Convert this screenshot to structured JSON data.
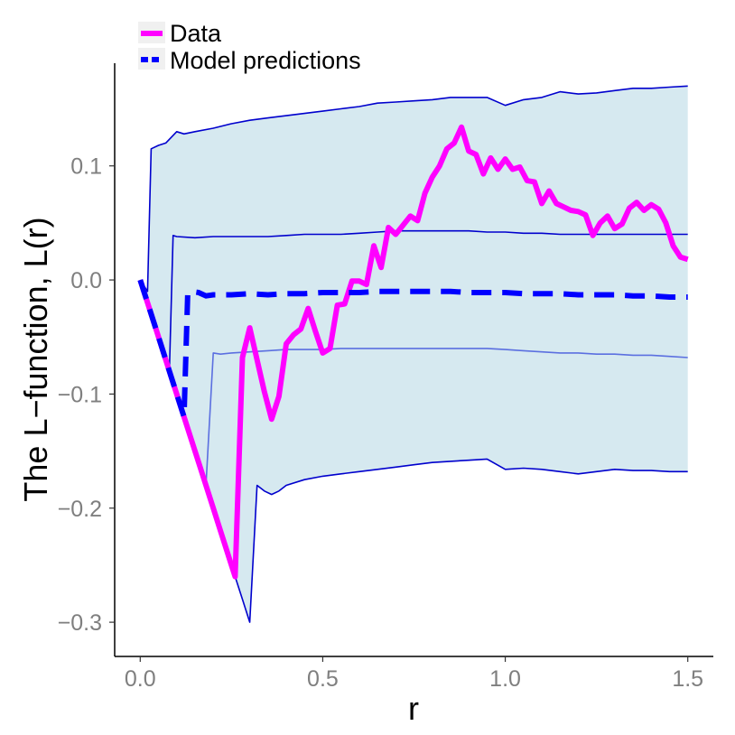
{
  "chart_data": {
    "type": "line",
    "title": "",
    "xlabel": "r",
    "ylabel": "The L−function, L(r)",
    "xlim": [
      -0.07,
      1.57
    ],
    "ylim": [
      -0.33,
      0.19
    ],
    "x_ticks": [
      0.0,
      0.5,
      1.0,
      1.5
    ],
    "x_tick_labels": [
      "0.0",
      "0.5",
      "1.0",
      "1.5"
    ],
    "y_ticks": [
      0.1,
      0.0,
      -0.1,
      -0.2,
      -0.3
    ],
    "y_tick_labels": [
      "0.1",
      "0.0",
      "−0.1",
      "−0.2",
      "−0.3"
    ],
    "grid": false,
    "legend": {
      "placement": "top-left",
      "entries": [
        {
          "label": "Data",
          "color": "#ff00ff",
          "style": "solid"
        },
        {
          "label": "Model predictions",
          "color": "#0000ff",
          "style": "dashed"
        }
      ]
    },
    "colors": {
      "data": "#ff00ff",
      "model": "#0000ff",
      "outer_band": "#0000cd",
      "inner_lower": "#5b6fe0",
      "band_fill": "#d6e9f0",
      "axis": "#000000"
    },
    "series": [
      {
        "name": "Data",
        "role": "data",
        "x": [
          0.0,
          0.02,
          0.04,
          0.06,
          0.08,
          0.1,
          0.12,
          0.14,
          0.16,
          0.18,
          0.2,
          0.22,
          0.24,
          0.26,
          0.28,
          0.3,
          0.32,
          0.34,
          0.36,
          0.38,
          0.4,
          0.42,
          0.44,
          0.46,
          0.48,
          0.5,
          0.52,
          0.54,
          0.56,
          0.58,
          0.6,
          0.62,
          0.64,
          0.66,
          0.68,
          0.7,
          0.72,
          0.74,
          0.76,
          0.78,
          0.8,
          0.82,
          0.84,
          0.86,
          0.88,
          0.9,
          0.92,
          0.94,
          0.96,
          0.98,
          1.0,
          1.02,
          1.04,
          1.06,
          1.08,
          1.1,
          1.12,
          1.14,
          1.16,
          1.18,
          1.2,
          1.22,
          1.24,
          1.26,
          1.28,
          1.3,
          1.32,
          1.34,
          1.36,
          1.38,
          1.4,
          1.42,
          1.44,
          1.46,
          1.48,
          1.5
        ],
        "y": [
          0.0,
          -0.02,
          -0.04,
          -0.06,
          -0.08,
          -0.1,
          -0.12,
          -0.14,
          -0.16,
          -0.18,
          -0.2,
          -0.22,
          -0.24,
          -0.26,
          -0.068,
          -0.042,
          -0.07,
          -0.098,
          -0.122,
          -0.102,
          -0.056,
          -0.048,
          -0.043,
          -0.025,
          -0.045,
          -0.064,
          -0.06,
          -0.022,
          -0.021,
          -0.001,
          -0.001,
          -0.004,
          0.03,
          0.011,
          0.046,
          0.04,
          0.048,
          0.056,
          0.052,
          0.076,
          0.09,
          0.1,
          0.115,
          0.12,
          0.134,
          0.113,
          0.11,
          0.093,
          0.107,
          0.097,
          0.106,
          0.097,
          0.099,
          0.087,
          0.086,
          0.067,
          0.078,
          0.067,
          0.064,
          0.061,
          0.06,
          0.057,
          0.039,
          0.05,
          0.056,
          0.045,
          0.049,
          0.063,
          0.068,
          0.061,
          0.066,
          0.062,
          0.05,
          0.03,
          0.02,
          0.018
        ]
      },
      {
        "name": "Model predictions",
        "role": "model",
        "x": [
          0.0,
          0.02,
          0.04,
          0.06,
          0.08,
          0.1,
          0.12,
          0.13,
          0.14,
          0.16,
          0.18,
          0.2,
          0.25,
          0.3,
          0.35,
          0.4,
          0.45,
          0.5,
          0.55,
          0.6,
          0.65,
          0.7,
          0.75,
          0.8,
          0.85,
          0.9,
          0.95,
          1.0,
          1.05,
          1.1,
          1.15,
          1.2,
          1.25,
          1.3,
          1.35,
          1.4,
          1.45,
          1.5
        ],
        "y": [
          0.0,
          -0.02,
          -0.04,
          -0.06,
          -0.08,
          -0.1,
          -0.12,
          -0.012,
          -0.01,
          -0.011,
          -0.014,
          -0.013,
          -0.013,
          -0.012,
          -0.013,
          -0.012,
          -0.012,
          -0.011,
          -0.011,
          -0.011,
          -0.01,
          -0.01,
          -0.01,
          -0.01,
          -0.01,
          -0.011,
          -0.011,
          -0.011,
          -0.012,
          -0.012,
          -0.012,
          -0.013,
          -0.013,
          -0.013,
          -0.014,
          -0.014,
          -0.015,
          -0.015
        ]
      },
      {
        "role": "outer_upper",
        "x": [
          0.0,
          0.02,
          0.03,
          0.05,
          0.07,
          0.1,
          0.12,
          0.15,
          0.2,
          0.25,
          0.3,
          0.35,
          0.4,
          0.45,
          0.5,
          0.55,
          0.6,
          0.65,
          0.7,
          0.75,
          0.8,
          0.85,
          0.9,
          0.95,
          1.0,
          1.05,
          1.1,
          1.15,
          1.2,
          1.25,
          1.3,
          1.35,
          1.4,
          1.45,
          1.5
        ],
        "y": [
          0.0,
          -0.01,
          0.115,
          0.118,
          0.12,
          0.13,
          0.128,
          0.13,
          0.133,
          0.137,
          0.14,
          0.142,
          0.144,
          0.146,
          0.148,
          0.15,
          0.152,
          0.155,
          0.156,
          0.157,
          0.158,
          0.16,
          0.16,
          0.16,
          0.153,
          0.158,
          0.16,
          0.165,
          0.163,
          0.164,
          0.166,
          0.168,
          0.168,
          0.169,
          0.17
        ]
      },
      {
        "role": "inner_upper",
        "x": [
          0.0,
          0.02,
          0.04,
          0.06,
          0.08,
          0.09,
          0.1,
          0.15,
          0.2,
          0.25,
          0.3,
          0.35,
          0.4,
          0.45,
          0.5,
          0.55,
          0.6,
          0.65,
          0.7,
          0.75,
          0.8,
          0.85,
          0.9,
          0.95,
          1.0,
          1.05,
          1.1,
          1.15,
          1.2,
          1.25,
          1.3,
          1.35,
          1.4,
          1.45,
          1.5
        ],
        "y": [
          0.0,
          -0.02,
          -0.04,
          -0.06,
          -0.08,
          0.039,
          0.038,
          0.037,
          0.038,
          0.038,
          0.038,
          0.038,
          0.039,
          0.04,
          0.04,
          0.04,
          0.041,
          0.042,
          0.043,
          0.043,
          0.043,
          0.043,
          0.043,
          0.042,
          0.042,
          0.041,
          0.041,
          0.04,
          0.04,
          0.04,
          0.04,
          0.04,
          0.04,
          0.04,
          0.04
        ]
      },
      {
        "role": "inner_lower",
        "x": [
          0.0,
          0.02,
          0.04,
          0.06,
          0.08,
          0.1,
          0.12,
          0.14,
          0.16,
          0.18,
          0.2,
          0.22,
          0.25,
          0.3,
          0.35,
          0.4,
          0.45,
          0.5,
          0.55,
          0.6,
          0.65,
          0.7,
          0.75,
          0.8,
          0.85,
          0.9,
          0.95,
          1.0,
          1.05,
          1.1,
          1.15,
          1.2,
          1.25,
          1.3,
          1.35,
          1.4,
          1.45,
          1.5
        ],
        "y": [
          0.0,
          -0.02,
          -0.04,
          -0.06,
          -0.08,
          -0.1,
          -0.12,
          -0.14,
          -0.16,
          -0.18,
          -0.064,
          -0.065,
          -0.064,
          -0.063,
          -0.062,
          -0.061,
          -0.061,
          -0.061,
          -0.06,
          -0.06,
          -0.06,
          -0.06,
          -0.06,
          -0.06,
          -0.06,
          -0.06,
          -0.06,
          -0.061,
          -0.062,
          -0.063,
          -0.064,
          -0.064,
          -0.065,
          -0.065,
          -0.066,
          -0.066,
          -0.067,
          -0.068
        ]
      },
      {
        "role": "outer_lower",
        "x": [
          0.0,
          0.02,
          0.04,
          0.06,
          0.08,
          0.1,
          0.12,
          0.14,
          0.16,
          0.18,
          0.2,
          0.22,
          0.24,
          0.26,
          0.28,
          0.3,
          0.32,
          0.34,
          0.36,
          0.38,
          0.4,
          0.45,
          0.5,
          0.55,
          0.6,
          0.65,
          0.7,
          0.75,
          0.8,
          0.85,
          0.9,
          0.95,
          1.0,
          1.05,
          1.1,
          1.15,
          1.2,
          1.25,
          1.3,
          1.35,
          1.4,
          1.45,
          1.5
        ],
        "y": [
          0.0,
          -0.02,
          -0.04,
          -0.06,
          -0.08,
          -0.1,
          -0.12,
          -0.14,
          -0.16,
          -0.18,
          -0.2,
          -0.22,
          -0.24,
          -0.26,
          -0.28,
          -0.3,
          -0.18,
          -0.185,
          -0.188,
          -0.185,
          -0.18,
          -0.175,
          -0.172,
          -0.17,
          -0.168,
          -0.166,
          -0.164,
          -0.162,
          -0.16,
          -0.159,
          -0.158,
          -0.157,
          -0.166,
          -0.165,
          -0.166,
          -0.168,
          -0.17,
          -0.168,
          -0.166,
          -0.167,
          -0.167,
          -0.168,
          -0.168
        ]
      }
    ]
  }
}
